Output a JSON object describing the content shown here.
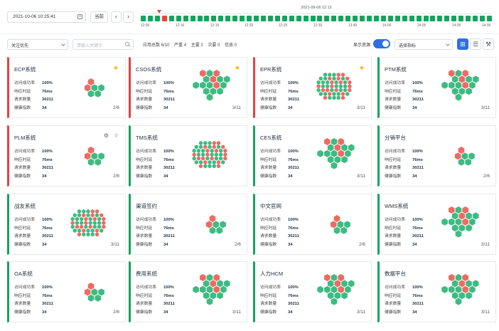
{
  "toolbar": {
    "datetime": "2021-10-06 10:25:41",
    "now_label": "当前",
    "prev_icon": "‹",
    "next_icon": "›"
  },
  "timeline": {
    "current": "2021-09-06 12:12",
    "ticks": [
      "12:05",
      "12:10",
      "12:15",
      "12:20",
      "12:25",
      "12:30",
      "13:40",
      "14:00",
      "14:05",
      "14:05",
      "14:05"
    ],
    "block_count": 50,
    "red_index": 3
  },
  "filters": {
    "focus_select": "关注优先",
    "search_placeholder": "请输入关键字",
    "stats": {
      "app_total": "应用总数 6/10",
      "critical": "严重 4",
      "major": "主要 2",
      "minor": "次要 0",
      "info": "信息 0"
    },
    "show_resources": "显示资源",
    "metric_select": "选择指标"
  },
  "metric_labels": [
    "访问成功率",
    "响应时延",
    "请求数量",
    "健康指数"
  ],
  "colors": {
    "good": "#3dbb82",
    "bad": "#ee6b62",
    "accent": "#2f6fe4",
    "star": "#f5b400"
  },
  "cards": [
    {
      "title": "ECP系统",
      "status": "red",
      "star": true,
      "ratio": "2/6",
      "values": [
        "100%",
        "76ms",
        "30211",
        "34"
      ],
      "hex": "small"
    },
    {
      "title": "CSOS系统",
      "status": "red",
      "star": true,
      "ratio": "3/11",
      "values": [
        "100%",
        "76ms",
        "30211",
        "34"
      ],
      "hex": "medium"
    },
    {
      "title": "EPR系统",
      "status": "red",
      "star": true,
      "ratio": "3/11",
      "values": [
        "100%",
        "76ms",
        "30211",
        "34"
      ],
      "hex": "dense"
    },
    {
      "title": "PTM系统",
      "status": "green",
      "star": false,
      "ratio": "3/11",
      "values": [
        "100%",
        "76ms",
        "30211",
        "34"
      ],
      "hex": "medium"
    },
    {
      "title": "PLM系统",
      "status": "red",
      "star": false,
      "ratio": "2/6",
      "values": [
        "100%",
        "76ms",
        "30211",
        "34"
      ],
      "hex": "small",
      "extra_icons": [
        "settings-icon",
        "star-outline-icon"
      ]
    },
    {
      "title": "TMS系统",
      "status": "green",
      "star": false,
      "ratio": "",
      "values": [
        "100%",
        "76ms",
        "30211",
        "34"
      ],
      "hex": "dense"
    },
    {
      "title": "CES系统",
      "status": "green",
      "star": false,
      "ratio": "3/11",
      "values": [
        "100%",
        "76ms",
        "30211",
        "34"
      ],
      "hex": "medium"
    },
    {
      "title": "分销平台",
      "status": "green",
      "star": false,
      "ratio": "2/6",
      "values": [
        "100%",
        "76ms",
        "30211",
        "34"
      ],
      "hex": "small"
    },
    {
      "title": "战友系统",
      "status": "green",
      "star": false,
      "ratio": "3/11",
      "values": [
        "100%",
        "76ms",
        "30211",
        "34"
      ],
      "hex": "dense"
    },
    {
      "title": "渠道签约",
      "status": "green",
      "star": false,
      "ratio": "2/6",
      "values": [
        "100%",
        "76ms",
        "30211",
        "34"
      ],
      "hex": "small"
    },
    {
      "title": "中文官网",
      "status": "green",
      "star": false,
      "ratio": "2/6",
      "values": [
        "100%",
        "76ms",
        "30211",
        "34"
      ],
      "hex": "small"
    },
    {
      "title": "WMS系统",
      "status": "green",
      "star": false,
      "ratio": "3/11",
      "values": [
        "100%",
        "76ms",
        "30211",
        "34"
      ],
      "hex": "medium"
    },
    {
      "title": "OA系统",
      "status": "green",
      "star": false,
      "ratio": "2/6",
      "values": [
        "100%",
        "76ms",
        "30211",
        "34"
      ],
      "hex": "small"
    },
    {
      "title": "费用系统",
      "status": "green",
      "star": false,
      "ratio": "3/11",
      "values": [
        "100%",
        "76ms",
        "30211",
        "34"
      ],
      "hex": "medium"
    },
    {
      "title": "人力HCM",
      "status": "green",
      "star": false,
      "ratio": "3/11",
      "values": [
        "100%",
        "76ms",
        "30211",
        "34"
      ],
      "hex": "medium"
    },
    {
      "title": "数据平台",
      "status": "green",
      "star": false,
      "ratio": "3/11",
      "values": [
        "100%",
        "76ms",
        "30211",
        "34"
      ],
      "hex": "medium"
    }
  ]
}
